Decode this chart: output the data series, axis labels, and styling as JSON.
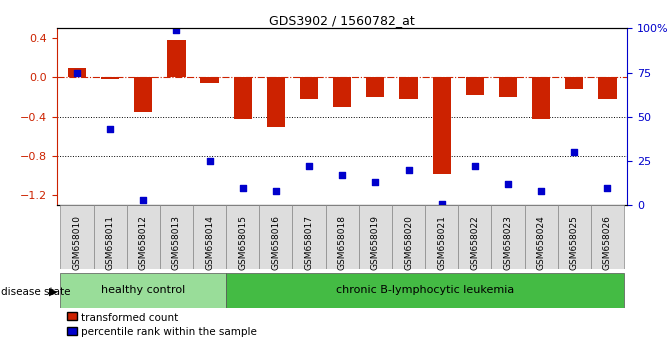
{
  "title": "GDS3902 / 1560782_at",
  "samples": [
    "GSM658010",
    "GSM658011",
    "GSM658012",
    "GSM658013",
    "GSM658014",
    "GSM658015",
    "GSM658016",
    "GSM658017",
    "GSM658018",
    "GSM658019",
    "GSM658020",
    "GSM658021",
    "GSM658022",
    "GSM658023",
    "GSM658024",
    "GSM658025",
    "GSM658026"
  ],
  "bar_values": [
    0.1,
    -0.02,
    -0.35,
    0.38,
    -0.06,
    -0.42,
    -0.5,
    -0.22,
    -0.3,
    -0.2,
    -0.22,
    -0.98,
    -0.18,
    -0.2,
    -0.42,
    -0.12,
    -0.22
  ],
  "percentile_right": [
    75,
    43,
    3,
    99,
    25,
    10,
    8,
    22,
    17,
    13,
    20,
    1,
    22,
    12,
    8,
    30,
    10
  ],
  "bar_color": "#cc2200",
  "dot_color": "#0000cc",
  "hline_color": "#cc2200",
  "dotgrid_color": "#000000",
  "ylim_left": [
    -1.3,
    0.5
  ],
  "ylim_right": [
    0,
    100
  ],
  "yticks_left": [
    0.4,
    0.0,
    -0.4,
    -0.8,
    -1.2
  ],
  "yticks_right": [
    100,
    75,
    50,
    25,
    0
  ],
  "group_boundary_idx": 5,
  "group1_label": "healthy control",
  "group2_label": "chronic B-lymphocytic leukemia",
  "group1_color": "#99dd99",
  "group2_color": "#44bb44",
  "legend_bar_label": "transformed count",
  "legend_dot_label": "percentile rank within the sample",
  "disease_state_label": "disease state"
}
